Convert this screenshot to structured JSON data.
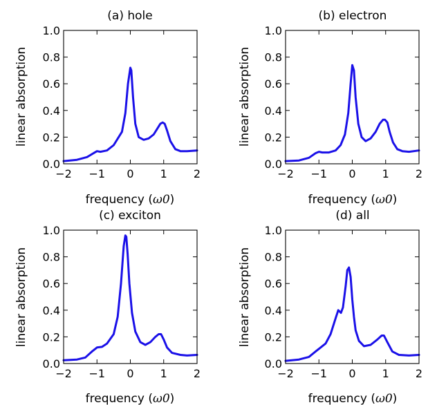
{
  "colors": {
    "line": "#1a10e8",
    "axes": "#000000",
    "background": "#ffffff"
  },
  "chart_data": [
    {
      "type": "line",
      "title": "(a) hole",
      "xlabel": "frequency",
      "xlabel_unit": "ω0",
      "ylabel": "linear absorption",
      "xlim": [
        -2,
        2
      ],
      "ylim": [
        0,
        1
      ],
      "xticks": [
        -2,
        -1,
        0,
        1,
        2
      ],
      "yticks": [
        0.0,
        0.2,
        0.4,
        0.6,
        0.8,
        1.0
      ],
      "xtick_labels": [
        "−2",
        "−1",
        "0",
        "1",
        "2"
      ],
      "ytick_labels": [
        "0.0",
        "0.2",
        "0.4",
        "0.6",
        "0.8",
        "1.0"
      ],
      "series": [
        {
          "x": [
            -2.0,
            -1.6,
            -1.3,
            -1.1,
            -1.0,
            -0.9,
            -0.7,
            -0.5,
            -0.35,
            -0.25,
            -0.15,
            -0.07,
            0.0,
            0.03,
            0.08,
            0.15,
            0.25,
            0.4,
            0.55,
            0.7,
            0.8,
            0.9,
            0.97,
            1.03,
            1.1,
            1.2,
            1.35,
            1.5,
            1.7,
            2.0
          ],
          "y": [
            0.02,
            0.03,
            0.05,
            0.08,
            0.095,
            0.09,
            0.1,
            0.14,
            0.2,
            0.24,
            0.38,
            0.6,
            0.72,
            0.7,
            0.5,
            0.3,
            0.2,
            0.18,
            0.19,
            0.22,
            0.26,
            0.3,
            0.31,
            0.3,
            0.25,
            0.17,
            0.11,
            0.095,
            0.095,
            0.1
          ]
        }
      ]
    },
    {
      "type": "line",
      "title": "(b) electron",
      "xlabel": "frequency",
      "xlabel_unit": "ω0",
      "ylabel": "linear absorption",
      "xlim": [
        -2,
        2
      ],
      "ylim": [
        0,
        1
      ],
      "xticks": [
        -2,
        -1,
        0,
        1,
        2
      ],
      "yticks": [
        0.0,
        0.2,
        0.4,
        0.6,
        0.8,
        1.0
      ],
      "xtick_labels": [
        "−2",
        "−1",
        "0",
        "1",
        "2"
      ],
      "ytick_labels": [
        "0.0",
        "0.2",
        "0.4",
        "0.6",
        "0.8",
        "1.0"
      ],
      "series": [
        {
          "x": [
            -2.0,
            -1.6,
            -1.3,
            -1.1,
            -1.0,
            -0.9,
            -0.7,
            -0.5,
            -0.35,
            -0.22,
            -0.12,
            -0.05,
            0.0,
            0.05,
            0.1,
            0.18,
            0.28,
            0.4,
            0.55,
            0.7,
            0.82,
            0.92,
            0.98,
            1.05,
            1.12,
            1.22,
            1.35,
            1.5,
            1.7,
            2.0
          ],
          "y": [
            0.02,
            0.025,
            0.045,
            0.08,
            0.09,
            0.085,
            0.085,
            0.1,
            0.14,
            0.22,
            0.38,
            0.6,
            0.74,
            0.7,
            0.5,
            0.3,
            0.2,
            0.17,
            0.19,
            0.24,
            0.3,
            0.33,
            0.33,
            0.31,
            0.24,
            0.16,
            0.11,
            0.095,
            0.09,
            0.1
          ]
        }
      ]
    },
    {
      "type": "line",
      "title": "(c) exciton",
      "xlabel": "frequency",
      "xlabel_unit": "ω0",
      "ylabel": "linear absorption",
      "xlim": [
        -2,
        2
      ],
      "ylim": [
        0,
        1
      ],
      "xticks": [
        -2,
        -1,
        0,
        1,
        2
      ],
      "yticks": [
        0.0,
        0.2,
        0.4,
        0.6,
        0.8,
        1.0
      ],
      "xtick_labels": [
        "−2",
        "−1",
        "0",
        "1",
        "2"
      ],
      "ytick_labels": [
        "0.0",
        "0.2",
        "0.4",
        "0.6",
        "0.8",
        "1.0"
      ],
      "series": [
        {
          "x": [
            -2.0,
            -1.6,
            -1.35,
            -1.15,
            -1.0,
            -0.85,
            -0.7,
            -0.5,
            -0.38,
            -0.28,
            -0.2,
            -0.15,
            -0.12,
            -0.08,
            -0.03,
            0.05,
            0.15,
            0.3,
            0.45,
            0.6,
            0.75,
            0.85,
            0.92,
            1.0,
            1.1,
            1.25,
            1.5,
            1.7,
            2.0
          ],
          "y": [
            0.025,
            0.03,
            0.045,
            0.09,
            0.12,
            0.125,
            0.15,
            0.22,
            0.35,
            0.6,
            0.88,
            0.96,
            0.95,
            0.82,
            0.6,
            0.38,
            0.24,
            0.16,
            0.14,
            0.16,
            0.2,
            0.22,
            0.22,
            0.18,
            0.12,
            0.08,
            0.065,
            0.06,
            0.065
          ]
        }
      ]
    },
    {
      "type": "line",
      "title": "(d) all",
      "xlabel": "frequency",
      "xlabel_unit": "ω0",
      "ylabel": "linear absorption",
      "xlim": [
        -2,
        2
      ],
      "ylim": [
        0,
        1
      ],
      "xticks": [
        -2,
        -1,
        0,
        1,
        2
      ],
      "yticks": [
        0.0,
        0.2,
        0.4,
        0.6,
        0.8,
        1.0
      ],
      "xtick_labels": [
        "−2",
        "−1",
        "0",
        "1",
        "2"
      ],
      "ytick_labels": [
        "0.0",
        "0.2",
        "0.4",
        "0.6",
        "0.8",
        "1.0"
      ],
      "series": [
        {
          "x": [
            -2.0,
            -1.6,
            -1.3,
            -1.1,
            -0.95,
            -0.8,
            -0.65,
            -0.5,
            -0.42,
            -0.38,
            -0.34,
            -0.28,
            -0.2,
            -0.15,
            -0.1,
            -0.05,
            0.0,
            0.05,
            0.1,
            0.2,
            0.35,
            0.55,
            0.75,
            0.88,
            0.95,
            1.05,
            1.2,
            1.4,
            1.7,
            2.0
          ],
          "y": [
            0.02,
            0.03,
            0.05,
            0.09,
            0.12,
            0.15,
            0.22,
            0.34,
            0.4,
            0.39,
            0.38,
            0.42,
            0.58,
            0.7,
            0.72,
            0.65,
            0.48,
            0.35,
            0.25,
            0.17,
            0.13,
            0.14,
            0.18,
            0.21,
            0.21,
            0.16,
            0.09,
            0.065,
            0.06,
            0.065
          ]
        }
      ]
    }
  ]
}
